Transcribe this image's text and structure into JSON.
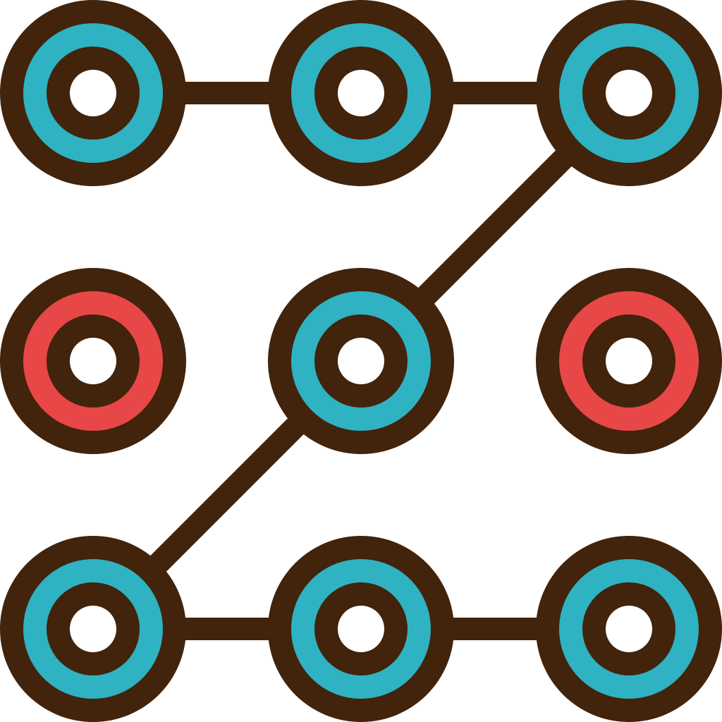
{
  "icon": {
    "name": "pattern-lock-icon",
    "colors": {
      "outline": "#42230B",
      "selected": "#2FB2C2",
      "unselected": "#E84747",
      "center": "#FFFFFF",
      "background": "#FFFFFF"
    },
    "grid": {
      "rows": 3,
      "cols": 3
    },
    "nodes": [
      {
        "id": "top-left",
        "row": 0,
        "col": 0,
        "state": "selected"
      },
      {
        "id": "top-center",
        "row": 0,
        "col": 1,
        "state": "selected"
      },
      {
        "id": "top-right",
        "row": 0,
        "col": 2,
        "state": "selected"
      },
      {
        "id": "middle-left",
        "row": 1,
        "col": 0,
        "state": "unselected"
      },
      {
        "id": "middle-center",
        "row": 1,
        "col": 1,
        "state": "selected"
      },
      {
        "id": "middle-right",
        "row": 1,
        "col": 2,
        "state": "unselected"
      },
      {
        "id": "bottom-left",
        "row": 2,
        "col": 0,
        "state": "selected"
      },
      {
        "id": "bottom-center",
        "row": 2,
        "col": 1,
        "state": "selected"
      },
      {
        "id": "bottom-right",
        "row": 2,
        "col": 2,
        "state": "selected"
      }
    ],
    "path": [
      "top-left",
      "top-center",
      "top-right",
      "middle-center",
      "bottom-left",
      "bottom-center",
      "bottom-right"
    ]
  }
}
